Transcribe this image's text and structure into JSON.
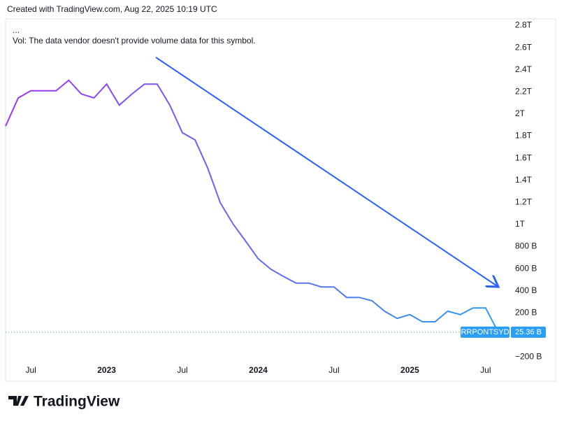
{
  "header": "Created with TradingView.com, Aug 22, 2025 10:19 UTC",
  "legend_lines": [
    "...",
    "Vol: The data vendor doesn't provide volume data for this symbol."
  ],
  "brand": "TradingView",
  "chart_data": {
    "type": "line",
    "x": [
      "2022-05",
      "2022-06",
      "2022-07",
      "2022-08",
      "2022-09",
      "2022-10",
      "2022-11",
      "2022-12",
      "2023-01",
      "2023-02",
      "2023-03",
      "2023-04",
      "2023-05",
      "2023-06",
      "2023-07",
      "2023-08",
      "2023-09",
      "2023-10",
      "2023-11",
      "2023-12",
      "2024-01",
      "2024-02",
      "2024-03",
      "2024-04",
      "2024-05",
      "2024-06",
      "2024-07",
      "2024-08",
      "2024-09",
      "2024-10",
      "2024-11",
      "2024-12",
      "2025-01",
      "2025-02",
      "2025-03",
      "2025-04",
      "2025-05",
      "2025-06",
      "2025-07",
      "2025-08"
    ],
    "series": [
      {
        "name": "RRPONTSYD",
        "color": "#2a9df4",
        "color_start": "#a334f0",
        "values": [
          1890,
          2145,
          2210,
          2210,
          2210,
          2305,
          2180,
          2145,
          2270,
          2080,
          2180,
          2270,
          2270,
          2080,
          1830,
          1765,
          1510,
          1195,
          1005,
          850,
          690,
          595,
          530,
          470,
          470,
          435,
          435,
          340,
          340,
          310,
          215,
          150,
          185,
          120,
          120,
          215,
          185,
          245,
          245,
          25.36
        ],
        "value_labels": [
          null,
          null,
          null,
          null,
          null,
          null,
          null,
          null,
          null,
          null,
          null,
          null,
          null,
          null,
          null,
          null,
          null,
          null,
          null,
          null,
          null,
          null,
          null,
          null,
          null,
          null,
          null,
          null,
          null,
          null,
          null,
          null,
          null,
          null,
          null,
          null,
          null,
          null,
          null,
          "25.36 B"
        ]
      }
    ],
    "xlim": [
      "2022-05",
      "2025-09"
    ],
    "xticks": [
      {
        "value": "2022-07",
        "label": "Jul"
      },
      {
        "value": "2023-01",
        "label": "2023"
      },
      {
        "value": "2023-07",
        "label": "Jul"
      },
      {
        "value": "2024-01",
        "label": "2024"
      },
      {
        "value": "2024-07",
        "label": "Jul"
      },
      {
        "value": "2025-01",
        "label": "2025"
      },
      {
        "value": "2025-07",
        "label": "Jul"
      }
    ],
    "ylim": [
      -260,
      2860
    ],
    "yticks": [
      {
        "value": -200,
        "label": "−200 B"
      },
      {
        "value": 200,
        "label": "200 B"
      },
      {
        "value": 400,
        "label": "400 B"
      },
      {
        "value": 600,
        "label": "600 B"
      },
      {
        "value": 800,
        "label": "800 B"
      },
      {
        "value": 1000,
        "label": "1T"
      },
      {
        "value": 1200,
        "label": "1.2T"
      },
      {
        "value": 1400,
        "label": "1.4T"
      },
      {
        "value": 1600,
        "label": "1.6T"
      },
      {
        "value": 1800,
        "label": "1.8T"
      },
      {
        "value": 2000,
        "label": "2T"
      },
      {
        "value": 2200,
        "label": "2.2T"
      },
      {
        "value": 2400,
        "label": "2.4T"
      },
      {
        "value": 2600,
        "label": "2.6T"
      },
      {
        "value": 2800,
        "label": "2.8T"
      }
    ]
  }
}
